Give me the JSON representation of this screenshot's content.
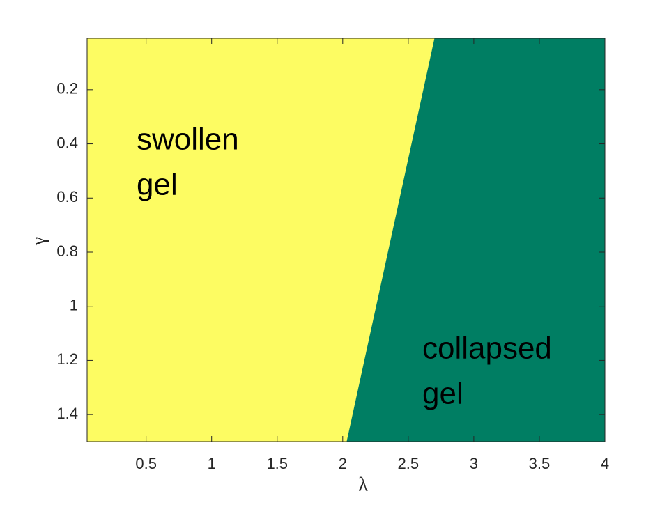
{
  "chart_data": {
    "type": "phase",
    "xlabel": "λ",
    "ylabel": "γ",
    "xlim": [
      0.05,
      4
    ],
    "ylim": [
      0.01,
      1.5
    ],
    "yreverse": true,
    "xticks": [
      0.5,
      1,
      1.5,
      2,
      2.5,
      3,
      3.5,
      4
    ],
    "yticks": [
      0.2,
      0.4,
      0.6,
      0.8,
      1,
      1.2,
      1.4
    ],
    "boundary": {
      "x": [
        2.7,
        2.03
      ],
      "y": [
        0.01,
        1.5
      ]
    },
    "regions": [
      {
        "label": [
          "swollen",
          "gel"
        ],
        "color": "#fdfc62"
      },
      {
        "label": [
          "collapsed",
          "gel"
        ],
        "color": "#007e63"
      }
    ]
  }
}
